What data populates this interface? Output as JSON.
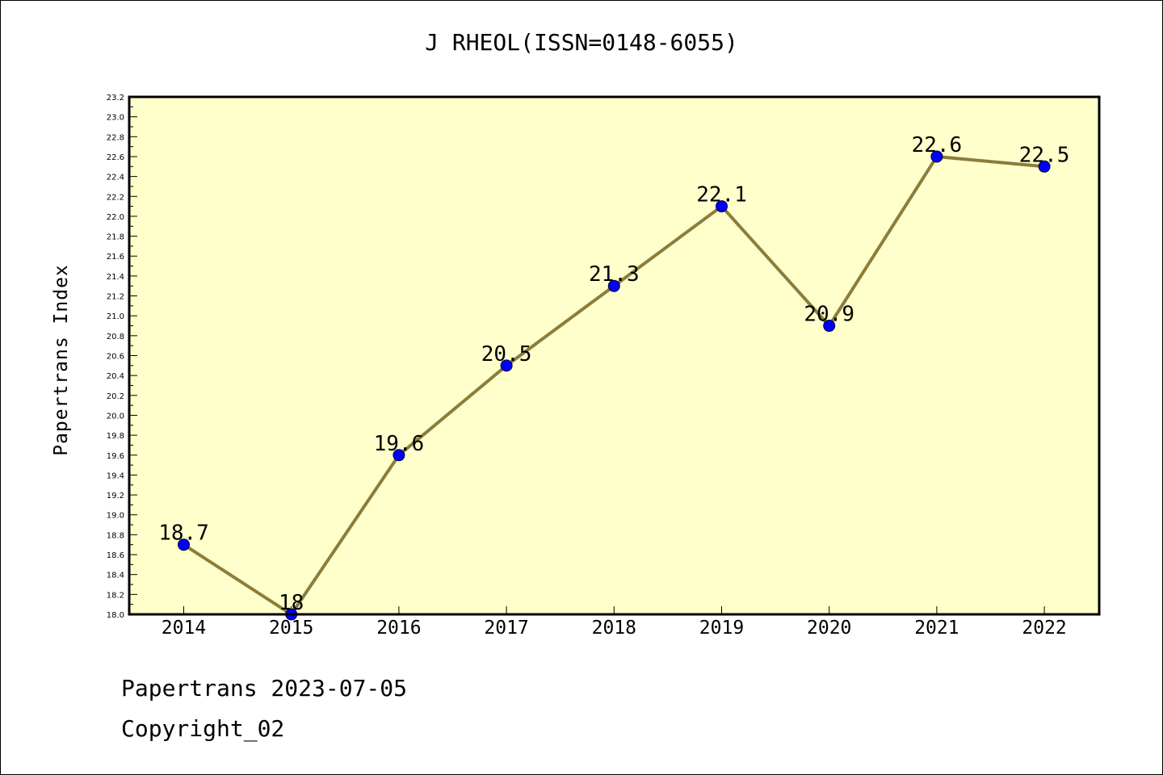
{
  "title": "J RHEOL(ISSN=0148-6055)",
  "footer": {
    "line1": "Papertrans 2023-07-05",
    "line2": "Copyright_02"
  },
  "colors": {
    "plot_background": "#ffffcc",
    "line": "#8b7d3a",
    "marker": "#0000ff",
    "axis": "#000000"
  },
  "chart_data": {
    "type": "line",
    "title": "J RHEOL(ISSN=0148-6055)",
    "xlabel": "",
    "ylabel": "Papertrans Index",
    "categories": [
      "2014",
      "2015",
      "2016",
      "2017",
      "2018",
      "2019",
      "2020",
      "2021",
      "2022"
    ],
    "values": [
      18.7,
      18.0,
      19.6,
      20.5,
      21.3,
      22.1,
      20.9,
      22.6,
      22.5
    ],
    "data_labels": [
      "18.7",
      "18",
      "19.6",
      "20.5",
      "21.3",
      "22.1",
      "20.9",
      "22.6",
      "22.5"
    ],
    "ylim": [
      18.0,
      23.2
    ],
    "y_ticks": [
      "18.0",
      "18.2",
      "18.4",
      "18.6",
      "18.8",
      "19.0",
      "19.2",
      "19.4",
      "19.6",
      "19.8",
      "20.0",
      "20.2",
      "20.4",
      "20.6",
      "20.8",
      "21.0",
      "21.2",
      "21.4",
      "21.6",
      "21.8",
      "22.0",
      "22.2",
      "22.4",
      "22.6",
      "22.8",
      "23.0",
      "23.2"
    ],
    "grid": false,
    "legend": "none"
  }
}
